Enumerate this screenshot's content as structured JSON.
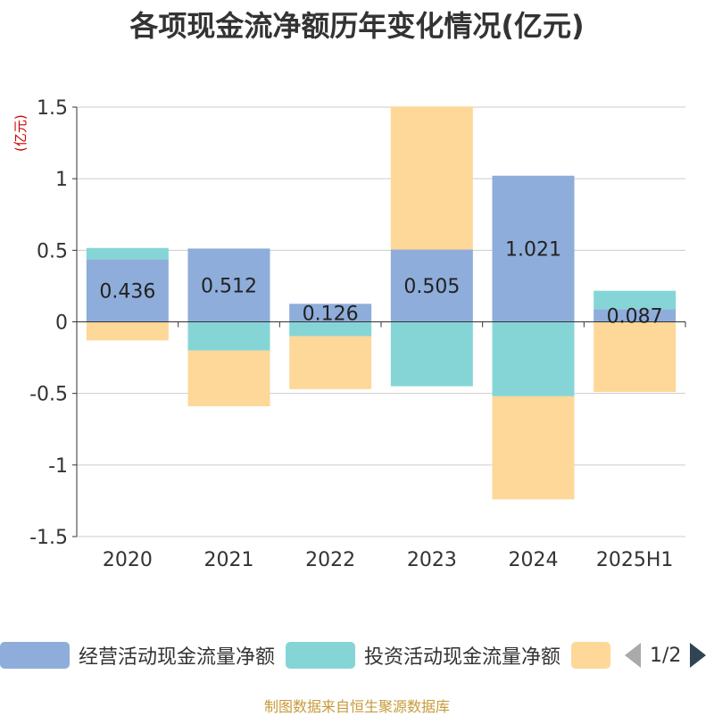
{
  "title": "各项现金流净额历年变化情况(亿元)",
  "unit_label": "(亿元)",
  "source": "制图数据来自恒生聚源数据库",
  "legend": {
    "page": "1/2"
  },
  "colors": {
    "operating": "#8eadda",
    "investing": "#86d5d6",
    "financing": "#fed898"
  },
  "chart_data": {
    "type": "bar",
    "stacked": true,
    "categories": [
      "2020",
      "2021",
      "2022",
      "2023",
      "2024",
      "2025H1"
    ],
    "ylim": [
      -1.5,
      1.5
    ],
    "yticks": [
      1.5,
      1,
      0.5,
      0,
      -0.5,
      -1,
      -1.5
    ],
    "ytick_labels": [
      "1.5",
      "1",
      "0.5",
      "0",
      "-0.5",
      "-1",
      "-1.5"
    ],
    "grid": true,
    "legend_position": "bottom",
    "series": [
      {
        "name": "经营活动现金流量净额",
        "values": [
          0.436,
          0.512,
          0.126,
          0.505,
          1.021,
          0.087
        ],
        "labels": [
          "0.436",
          "0.512",
          "0.126",
          "0.505",
          "1.021",
          "0.087"
        ]
      },
      {
        "name": "投资活动现金流量净额",
        "values": [
          0.08,
          -0.2,
          -0.1,
          -0.45,
          -0.52,
          0.13
        ]
      },
      {
        "name": "",
        "values": [
          -0.13,
          -0.39,
          -0.37,
          1.0,
          -0.72,
          -0.49
        ]
      }
    ]
  }
}
